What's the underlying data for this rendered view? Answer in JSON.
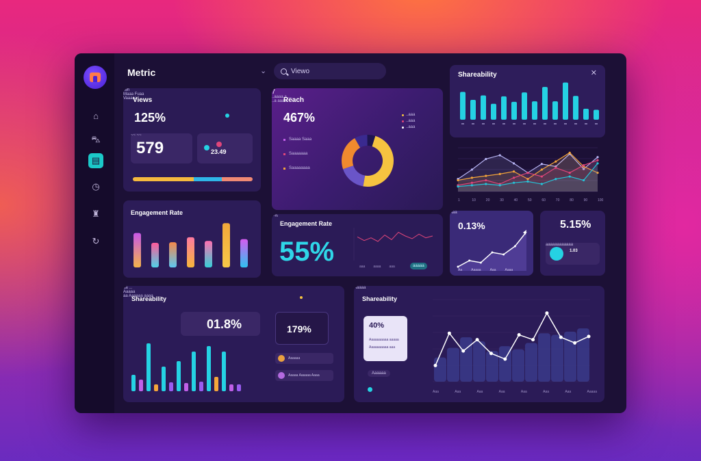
{
  "topbar": {
    "title": "Metric",
    "search_value": "Viewo"
  },
  "sidebar": {
    "items": [
      {
        "name": "home-icon",
        "glyph": "⌂"
      },
      {
        "name": "bus-icon",
        "glyph": "⛍"
      },
      {
        "name": "inbox-icon",
        "glyph": "▤",
        "active": true
      },
      {
        "name": "clock-icon",
        "glyph": "◷"
      },
      {
        "name": "lock-icon",
        "glyph": "♜"
      },
      {
        "name": "refresh-icon",
        "glyph": "↻"
      }
    ]
  },
  "views": {
    "title": "Views",
    "percent": "125%",
    "percent_suffix": "/wh",
    "legend": "Maaa Fuaa",
    "big_value": "579",
    "big_suffix": "~~ ~~",
    "caption": "Vaaaaa",
    "side_value": "23.49",
    "progress": [
      {
        "color": "#f5b93e",
        "fraction": 0.51
      },
      {
        "color": "#2fb6e8",
        "fraction": 0.23
      },
      {
        "color": "#f08a74",
        "fraction": 0.26
      }
    ]
  },
  "reach": {
    "title": "Reach",
    "percent": "467%",
    "legend_right": [
      "..aaa",
      "..aaa",
      "..aaa"
    ],
    "legend_left": [
      "Saaaa Saaa",
      "Saaaaaaa",
      "Saaaaaaaa"
    ],
    "footer_left": "..aaaa a.....",
    "footer_right": "..a aaaa",
    "small_num": "7",
    "donut": [
      {
        "color": "#f6c340",
        "value": 48
      },
      {
        "color": "#6a55c8",
        "value": 17
      },
      {
        "color": "#f08a2e",
        "value": 22
      },
      {
        "color": "#3a2a90",
        "value": 8
      },
      {
        "color": "#1e1550",
        "value": 5
      }
    ]
  },
  "shareability_top": {
    "title": "Shareability",
    "bars": [
      56,
      40,
      49,
      32,
      47,
      36,
      55,
      37,
      66,
      37,
      75,
      48,
      22,
      20
    ]
  },
  "multi_line": {
    "x_labels": [
      "1",
      "10",
      "20",
      "30",
      "40",
      "50",
      "60",
      "70",
      "80",
      "90",
      "100"
    ],
    "series": [
      {
        "color": "#b8b5f5",
        "values": [
          20,
          35,
          52,
          58,
          45,
          30,
          44,
          40,
          60,
          36,
          55
        ]
      },
      {
        "color": "#f5a53a",
        "values": [
          18,
          22,
          25,
          28,
          32,
          20,
          35,
          48,
          62,
          40,
          30
        ]
      },
      {
        "color": "#e0467a",
        "values": [
          10,
          14,
          18,
          12,
          22,
          30,
          24,
          38,
          30,
          42,
          50
        ]
      },
      {
        "color": "#25c4d8",
        "values": [
          8,
          10,
          12,
          10,
          14,
          16,
          12,
          20,
          24,
          18,
          45
        ]
      }
    ]
  },
  "engagement": {
    "title": "Engagement Rate",
    "bars": [
      {
        "color_top": "#c858e8",
        "color_bottom": "#f3b34a",
        "value": 56
      },
      {
        "color_top": "#ff5a9a",
        "color_bottom": "#4fd1e6",
        "value": 40
      },
      {
        "color_top": "#f5894a",
        "color_bottom": "#5ec6f0",
        "value": 41
      },
      {
        "color_top": "#ff7aa0",
        "color_bottom": "#f5b63a",
        "value": 49
      },
      {
        "color_top": "#ff6fb0",
        "color_bottom": "#36d0d8",
        "value": 43
      },
      {
        "color_top": "#f2a83a",
        "color_bottom": "#f7c848",
        "value": 72
      },
      {
        "color_top": "#d55cf0",
        "color_bottom": "#2fc2f0",
        "value": 46
      }
    ]
  },
  "engagement2": {
    "title": "Engagement Rate",
    "corner": "~%",
    "big_value": "55%",
    "axis_labels": [
      "aaa",
      "aaaa",
      "aaa"
    ],
    "button": "aaaaa",
    "line": [
      40,
      32,
      38,
      30,
      44,
      34,
      50,
      42,
      36,
      46,
      38,
      42
    ]
  },
  "mini_line": {
    "value": "0.13%",
    "suffix": "Aaa",
    "x_labels": [
      "Aa",
      "Aaaaa",
      "Aaa",
      "Aaaa"
    ],
    "values": [
      10,
      25,
      20,
      45,
      40,
      60,
      95
    ]
  },
  "stat": {
    "value": "5.15%",
    "sub_value": "1.03",
    "sub_caption": "aaaaaaaaaaaa"
  },
  "share_bottom": {
    "title": "Shareability",
    "legend": "aa ...",
    "caption": "Aaaaa",
    "value": "01.8%",
    "side_value": "179%",
    "list": [
      {
        "label": "Aaaaaa",
        "avatar": "#e8a040"
      },
      {
        "label": "Aaaaa Aaaaaa Aaaa",
        "avatar": "#b46ae0"
      }
    ],
    "footer": "aa Aaaaaa aaaa",
    "bars": [
      {
        "color": "#25d2e3",
        "value": 24
      },
      {
        "color": "#c060e8",
        "value": 17
      },
      {
        "color": "#25d2e3",
        "value": 70
      },
      {
        "color": "#f5a53a",
        "value": 10
      },
      {
        "color": "#25d2e3",
        "value": 36
      },
      {
        "color": "#9a5cf0",
        "value": 13
      },
      {
        "color": "#25d2e3",
        "value": 44
      },
      {
        "color": "#c060e8",
        "value": 12
      },
      {
        "color": "#25d2e3",
        "value": 58
      },
      {
        "color": "#9a5cf0",
        "value": 14
      },
      {
        "color": "#25d2e3",
        "value": 66
      },
      {
        "color": "#f5a53a",
        "value": 21
      },
      {
        "color": "#25d2e3",
        "value": 58
      },
      {
        "color": "#c060e8",
        "value": 10
      },
      {
        "color": "#9a5cf0",
        "value": 10
      }
    ]
  },
  "share_right": {
    "title": "Shareability",
    "popup_value": "40%",
    "popup_lines": [
      "Aaaaaaaaaa aaaaa",
      "Aaaaaaaaaa aaa"
    ],
    "button": "Aaaaaa",
    "footer": "Aaaaa",
    "x_labels": [
      "Aaa",
      "Aaa",
      "Aaa",
      "Aaa",
      "Aaa",
      "Aaa",
      "Aaa",
      "Aaaaa"
    ],
    "line": [
      20,
      60,
      38,
      52,
      35,
      28,
      58,
      52,
      85,
      55,
      48,
      56
    ],
    "area": [
      30,
      42,
      55,
      50,
      38,
      44,
      40,
      48,
      60,
      58,
      62,
      66
    ]
  },
  "colors": {
    "cyan": "#25d2e3",
    "panel": "#2b1b57",
    "window": "#1c1036"
  }
}
